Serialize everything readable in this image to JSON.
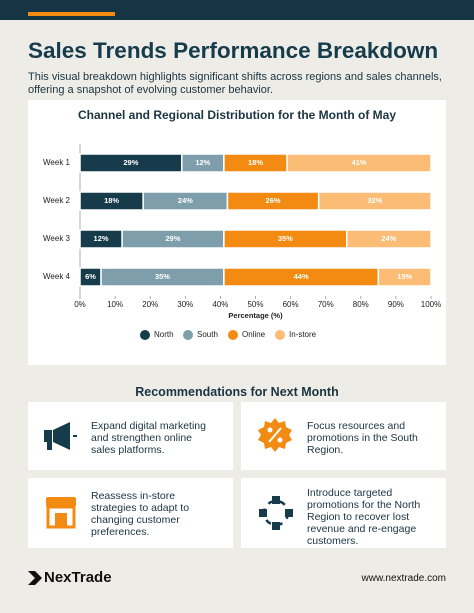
{
  "header": {
    "title": "Sales Trends Performance Breakdown",
    "subtitle": "This visual breakdown highlights significant shifts across regions and sales channels, offering a snapshot of evolving customer behavior."
  },
  "chart_data": {
    "type": "bar",
    "orientation": "horizontal",
    "stacked": true,
    "title": "Channel and Regional Distribution for the Month of May",
    "categories": [
      "Week 1",
      "Week 2",
      "Week 3",
      "Week 4"
    ],
    "series": [
      {
        "name": "North",
        "color": "#163b4b",
        "values": [
          29,
          18,
          12,
          6
        ],
        "value_labels": [
          "29%",
          "18%",
          "12%",
          "6%"
        ]
      },
      {
        "name": "South",
        "color": "#7f9eac",
        "values": [
          12,
          24,
          29,
          35
        ],
        "value_labels": [
          "12%",
          "24%",
          "29%",
          "35%"
        ]
      },
      {
        "name": "Online",
        "color": "#f38b12",
        "values": [
          18,
          26,
          35,
          44
        ],
        "value_labels": [
          "18%",
          "26%",
          "35%",
          "44%"
        ]
      },
      {
        "name": "In-store",
        "color": "#fbbd76",
        "values": [
          41,
          32,
          24,
          15
        ],
        "value_labels": [
          "41%",
          "32%",
          "24%",
          "15%"
        ]
      }
    ],
    "xlim": [
      0,
      100
    ],
    "xticks": [
      {
        "value": 0,
        "label": "0%"
      },
      {
        "value": 10,
        "label": "10%"
      },
      {
        "value": 20,
        "label": "20%"
      },
      {
        "value": 30,
        "label": "30%"
      },
      {
        "value": 40,
        "label": "40%"
      },
      {
        "value": 50,
        "label": "50%"
      },
      {
        "value": 60,
        "label": "60%"
      },
      {
        "value": 70,
        "label": "70%"
      },
      {
        "value": 80,
        "label": "80%"
      },
      {
        "value": 90,
        "label": "90%"
      },
      {
        "value": 100,
        "label": "100%"
      }
    ],
    "xlabel": "Percentage (%)",
    "legend": "bottom"
  },
  "recommendations": {
    "title": "Recommendations for Next Month",
    "items": [
      {
        "text": "Expand digital marketing and strengthen online sales platforms."
      },
      {
        "text": "Focus resources and promotions in the South Region."
      },
      {
        "text": "Reassess in-store strategies to adapt to changing customer preferences."
      },
      {
        "text": "Introduce targeted promotions for the North Region to recover lost revenue and re-engage customers."
      }
    ]
  },
  "footer": {
    "brand": "NexTrade",
    "url": "www.nextrade.com"
  }
}
